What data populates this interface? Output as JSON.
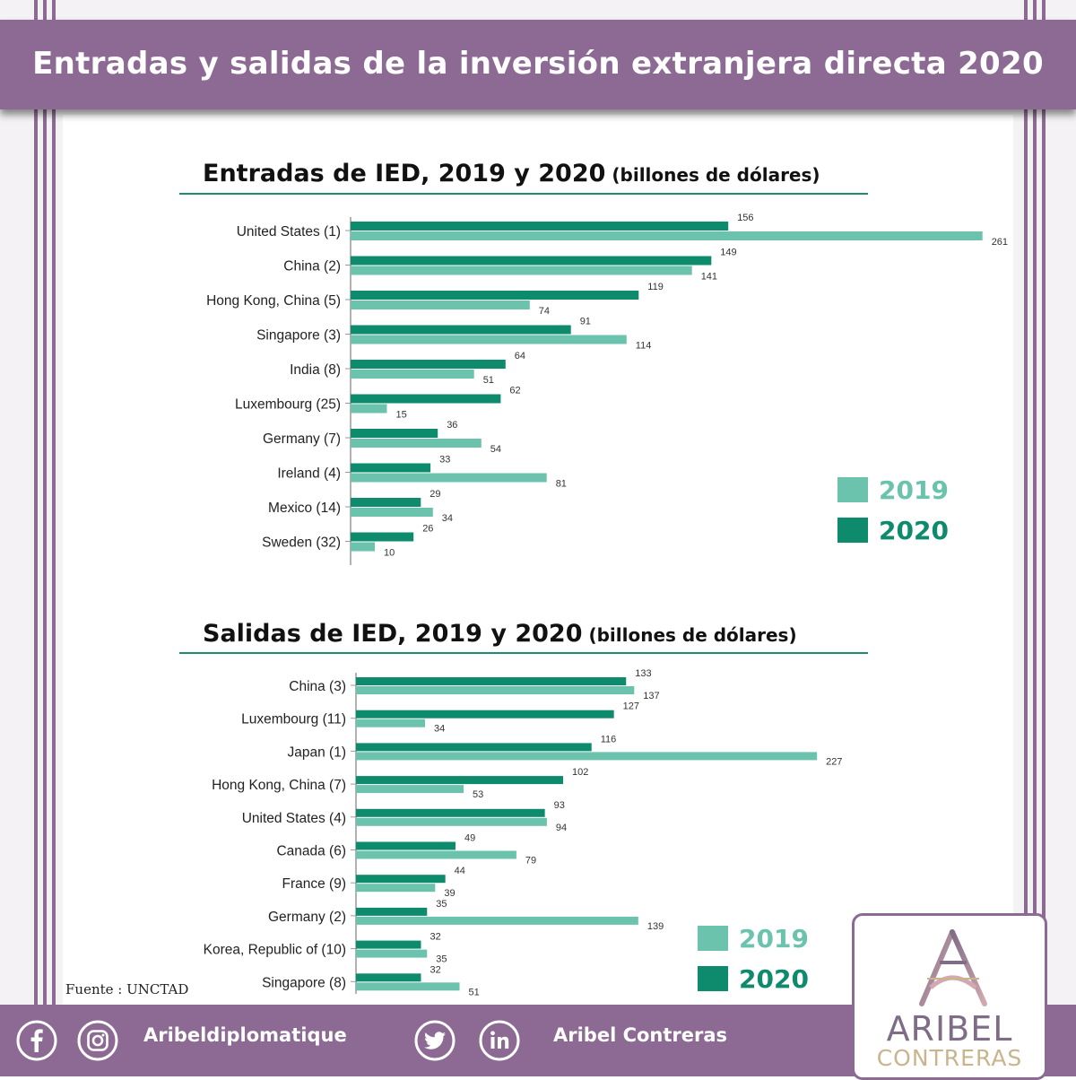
{
  "header": {
    "title": "Entradas y salidas de la inversión extranjera directa 2020"
  },
  "colors": {
    "purple": "#8c6a93",
    "series_2019": "#6cc3ad",
    "series_2020": "#0e8a6c"
  },
  "chart_data": [
    {
      "type": "bar",
      "orientation": "horizontal",
      "title": "Entradas de IED, 2019 y 2020",
      "subtitle": "(billones de dólares)",
      "categories": [
        "United States (1)",
        "China (2)",
        "Hong Kong, China (5)",
        "Singapore (3)",
        "India (8)",
        "Luxembourg (25)",
        "Germany (7)",
        "Ireland (4)",
        "Mexico (14)",
        "Sweden (32)"
      ],
      "series": [
        {
          "name": "2020",
          "color": "#0e8a6c",
          "values": [
            156,
            149,
            119,
            91,
            64,
            62,
            36,
            33,
            29,
            26
          ]
        },
        {
          "name": "2019",
          "color": "#6cc3ad",
          "values": [
            261,
            141,
            74,
            114,
            51,
            15,
            54,
            81,
            34,
            10
          ]
        }
      ],
      "legend": {
        "position": "right",
        "entries": [
          "2019",
          "2020"
        ]
      },
      "grid": false
    },
    {
      "type": "bar",
      "orientation": "horizontal",
      "title": "Salidas de IED, 2019 y 2020",
      "subtitle": "(billones de dólares)",
      "categories": [
        "China (3)",
        "Luxembourg (11)",
        "Japan (1)",
        "Hong Kong, China (7)",
        "United States (4)",
        "Canada (6)",
        "France (9)",
        "Germany (2)",
        "Korea, Republic of (10)",
        "Singapore (8)"
      ],
      "series": [
        {
          "name": "2020",
          "color": "#0e8a6c",
          "values": [
            133,
            127,
            116,
            102,
            93,
            49,
            44,
            35,
            32,
            32
          ]
        },
        {
          "name": "2019",
          "color": "#6cc3ad",
          "values": [
            137,
            34,
            227,
            53,
            94,
            79,
            39,
            139,
            35,
            51
          ]
        }
      ],
      "legend": {
        "position": "right",
        "entries": [
          "2019",
          "2020"
        ]
      },
      "grid": false
    }
  ],
  "source": "Fuente : UNCTAD",
  "footer": {
    "social": [
      {
        "icon": "facebook-icon"
      },
      {
        "icon": "instagram-icon"
      },
      {
        "icon": "twitter-icon"
      },
      {
        "icon": "linkedin-icon"
      }
    ],
    "handle_1": "Aribeldiplomatique",
    "handle_2": "Aribel Contreras"
  },
  "logo": {
    "line1": "ARIBEL",
    "line2": "CONTRERAS"
  }
}
